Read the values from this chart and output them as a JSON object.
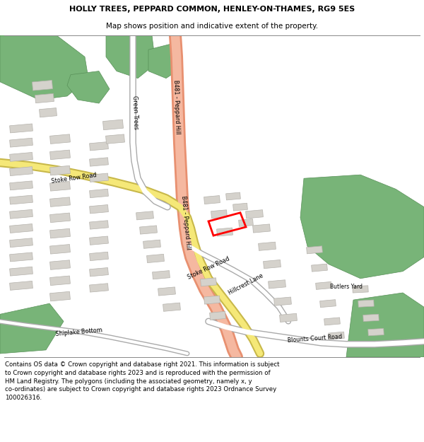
{
  "title_line1": "HOLLY TREES, PEPPARD COMMON, HENLEY-ON-THAMES, RG9 5ES",
  "title_line2": "Map shows position and indicative extent of the property.",
  "footer": "Contains OS data © Crown copyright and database right 2021. This information is subject\nto Crown copyright and database rights 2023 and is reproduced with the permission of\nHM Land Registry. The polygons (including the associated geometry, namely x, y\nco-ordinates) are subject to Crown copyright and database rights 2023 Ordnance Survey\n100026316.",
  "map_bg": "#f0eeeb",
  "road_main_color": "#f5b8a0",
  "road_main_border": "#e89070",
  "road_yellow_color": "#f5e878",
  "road_yellow_border": "#c8b84a",
  "building_color": "#d5d2cc",
  "building_border": "#b5b2ac",
  "green_color": "#78b478",
  "green_border": "#589058",
  "property_border": "#ff0000",
  "title_fontsize": 8.0,
  "subtitle_fontsize": 7.5,
  "footer_fontsize": 6.2,
  "label_fontsize": 5.8
}
